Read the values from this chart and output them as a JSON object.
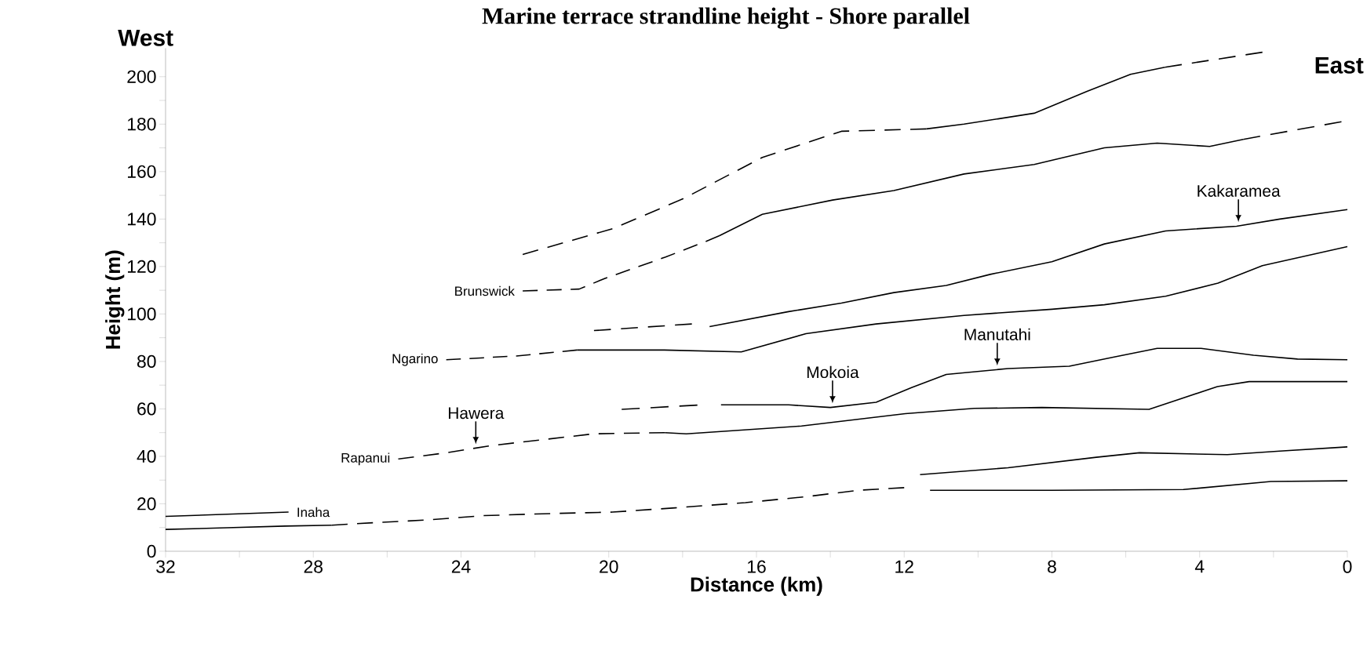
{
  "chart_data": {
    "type": "line",
    "title": "Marine terrace strandline height - Shore parallel",
    "xlabel": "Distance (km)",
    "ylabel": "Height (m)",
    "xlim": [
      32,
      0
    ],
    "ylim": [
      0,
      212
    ],
    "xticks": [
      32,
      {
        "value": 30,
        "label": null
      },
      28,
      {
        "value": 26,
        "label": null
      },
      24,
      {
        "value": 22,
        "label": null
      },
      20,
      {
        "value": 18,
        "label": null
      },
      16,
      {
        "value": 14,
        "label": null
      },
      12,
      {
        "value": 10,
        "label": null
      },
      8,
      {
        "value": 6,
        "label": null
      },
      4,
      {
        "value": 2,
        "label": null
      },
      0
    ],
    "yticks": [
      0,
      {
        "value": 10,
        "label": null
      },
      20,
      {
        "value": 30,
        "label": null
      },
      40,
      {
        "value": 50,
        "label": null
      },
      60,
      {
        "value": 70,
        "label": null
      },
      80,
      {
        "value": 90,
        "label": null
      },
      100,
      {
        "value": 110,
        "label": null
      },
      120,
      {
        "value": 130,
        "label": null
      },
      140,
      {
        "value": 150,
        "label": null
      },
      160,
      {
        "value": 170,
        "label": null
      },
      180,
      {
        "value": 190,
        "label": null
      },
      200
    ],
    "series": [
      {
        "color": "#000000",
        "line_style": "dashed",
        "x": [
          22.33,
          19.88,
          17.98,
          15.84,
          13.7,
          11.4
        ],
        "values": [
          125.1,
          136,
          148.6,
          166,
          177,
          178
        ]
      },
      {
        "color": "#000000",
        "line_style": "solid",
        "x": [
          11.4,
          10.38,
          8.48,
          7.05,
          5.87,
          4.94
        ],
        "values": [
          178,
          180,
          184.6,
          193.8,
          201,
          204
        ]
      },
      {
        "color": "#000000",
        "line_style": "dashed",
        "x": [
          4.94,
          2.3
        ],
        "values": [
          204,
          210.3
        ]
      },
      {
        "name": "Brunswick",
        "color": "#000000",
        "line_style": "dashed",
        "x": [
          22.33,
          20.8,
          20.1,
          18.46,
          17.3,
          17.0
        ],
        "values": [
          109.7,
          110.5,
          115,
          124,
          131,
          133
        ]
      },
      {
        "color": "#000000",
        "line_style": "solid",
        "x": [
          17.0,
          15.84,
          13.94,
          12.28,
          10.38,
          8.48,
          6.58,
          5.15,
          3.73,
          2.82
        ],
        "values": [
          133,
          142,
          148,
          152,
          159,
          163,
          170,
          172,
          170.6,
          173.6
        ]
      },
      {
        "color": "#000000",
        "line_style": "dashed",
        "x": [
          2.82,
          0.16
        ],
        "values": [
          173.6,
          181
        ]
      },
      {
        "color": "#000000",
        "line_style": "dashed",
        "x": [
          20.4,
          17.75
        ],
        "values": [
          93,
          95.8
        ]
      },
      {
        "color": "#000000",
        "line_style": "solid",
        "x": [
          17.27,
          15.13,
          13.7,
          12.28,
          10.86,
          9.67,
          8.0,
          6.58,
          4.92,
          3.0,
          1.83,
          0
        ],
        "values": [
          94.7,
          101,
          104.6,
          109,
          112,
          116.7,
          122,
          129.5,
          135,
          137,
          140,
          144
        ]
      },
      {
        "name": "Ngarino",
        "color": "#000000",
        "line_style": "dashed",
        "x": [
          24.4,
          22.5,
          20.86
        ],
        "values": [
          80.7,
          82.3,
          84.8
        ]
      },
      {
        "color": "#000000",
        "line_style": "solid",
        "x": [
          20.86,
          18.5,
          16.41,
          14.66,
          12.76,
          10.38,
          8.0,
          6.58,
          4.92,
          3.5,
          2.3,
          0
        ],
        "values": [
          84.8,
          84.8,
          84,
          91.7,
          95.8,
          99.4,
          102,
          103.9,
          107.5,
          113,
          120.4,
          128.4
        ]
      },
      {
        "color": "#000000",
        "line_style": "dashed",
        "x": [
          19.65,
          17.6
        ],
        "values": [
          59.8,
          61.6
        ]
      },
      {
        "color": "#000000",
        "line_style": "solid",
        "x": [
          16.96,
          15.13,
          14.0,
          12.76,
          11.8,
          10.86,
          9.19,
          7.53,
          6.34,
          5.15,
          3.96,
          2.54,
          1.35,
          0
        ],
        "values": [
          61.7,
          61.7,
          60.6,
          62.8,
          69,
          74.5,
          77,
          78,
          81.8,
          85.5,
          85.5,
          82.6,
          81,
          80.7
        ]
      },
      {
        "name": "Rapanui",
        "color": "#000000",
        "line_style": "dashed",
        "x": [
          25.7,
          24.4,
          23.2,
          21.8,
          20.4,
          18.48
        ],
        "values": [
          38.9,
          41.5,
          44.5,
          47,
          49.5,
          50
        ]
      },
      {
        "color": "#000000",
        "line_style": "solid",
        "x": [
          18.48,
          17.9,
          14.78,
          11.97,
          10.1,
          8.27,
          5.37,
          3.52,
          2.66,
          0
        ],
        "values": [
          50,
          49.5,
          52.8,
          58,
          60.2,
          60.6,
          59.8,
          69.4,
          71.5,
          71.5
        ]
      },
      {
        "name": "Inaha",
        "color": "#000000",
        "line_style": "solid",
        "x": [
          32,
          28.67
        ],
        "values": [
          14.7,
          16.5
        ]
      },
      {
        "color": "#000000",
        "line_style": "solid",
        "x": [
          32,
          30.34,
          28.77,
          27.5
        ],
        "values": [
          9.2,
          9.9,
          10.6,
          11
        ]
      },
      {
        "color": "#000000",
        "line_style": "dashed",
        "x": [
          27.5,
          26.3,
          24.9,
          23.4,
          21.8,
          19.9,
          18.2,
          16.3,
          14.66,
          13.23,
          12.0
        ],
        "values": [
          11,
          12.1,
          13.2,
          15,
          15.8,
          16.5,
          18.3,
          20.5,
          23,
          25.7,
          26.8
        ]
      },
      {
        "color": "#000000",
        "line_style": "solid",
        "x": [
          11.3,
          8.0,
          4.44,
          2.07,
          0
        ],
        "values": [
          25.7,
          25.7,
          26,
          29.4,
          29.7
        ]
      },
      {
        "color": "#000000",
        "line_style": "solid",
        "x": [
          11.57,
          9.19,
          6.8,
          5.63,
          3.25,
          1.83,
          0
        ],
        "values": [
          32.3,
          35.2,
          39.6,
          41.5,
          40.7,
          42.2,
          44
        ]
      }
    ],
    "annotations": [
      "West",
      "East",
      {
        "text": "Hawera",
        "x": 23.6,
        "y": 43.5
      },
      {
        "text": "Mokoia",
        "x": 13.94,
        "y": 60.7
      },
      {
        "text": "Manutahi",
        "x": 9.48,
        "y": 76.6
      },
      {
        "text": "Kakaramea",
        "x": 2.95,
        "y": 137.1
      }
    ]
  }
}
